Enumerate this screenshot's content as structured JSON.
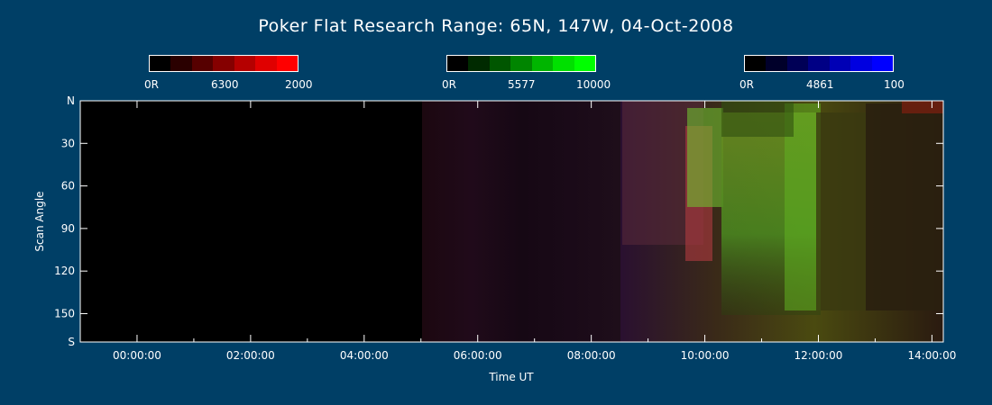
{
  "title": "Poker Flat Research Range: 65N, 147W, 04-Oct-2008",
  "colorbars": [
    {
      "name": "6300",
      "min_label": "0R",
      "mid_label": "6300",
      "max_label": "2000",
      "colors": [
        "#000000",
        "#2A0000",
        "#560000",
        "#850000",
        "#B50000",
        "#E00000",
        "#FF0000"
      ]
    },
    {
      "name": "5577",
      "min_label": "0R",
      "mid_label": "5577",
      "max_label": "10000",
      "colors": [
        "#000000",
        "#002A00",
        "#005600",
        "#008500",
        "#00B500",
        "#00E000",
        "#00FF00"
      ]
    },
    {
      "name": "4861",
      "min_label": "0R",
      "mid_label": "4861",
      "max_label": "100",
      "colors": [
        "#000000",
        "#00002A",
        "#000056",
        "#000085",
        "#0000B5",
        "#0000E0",
        "#0000FF"
      ]
    }
  ],
  "chart_data": {
    "type": "heatmap",
    "title": "Poker Flat Research Range: 65N, 147W, 04-Oct-2008",
    "xlabel": "Time UT",
    "ylabel": "Scan Angle",
    "x_ticks": [
      "00:00:00",
      "02:00:00",
      "04:00:00",
      "06:00:00",
      "08:00:00",
      "10:00:00",
      "12:00:00",
      "14:00:00"
    ],
    "x_range_hours": [
      -1.0,
      14.2
    ],
    "y_ticks": [
      "N",
      "30",
      "60",
      "90",
      "120",
      "150",
      "S"
    ],
    "y_tick_values": [
      0,
      30,
      60,
      90,
      120,
      150,
      170
    ],
    "y_range": [
      0,
      170
    ],
    "data_start_hour": 4.97,
    "channels": [
      "6300 (red)",
      "5577 (green)",
      "4861 (blue)"
    ],
    "colors": {
      "background": "#003F66",
      "axis": "#FFFFFF"
    }
  }
}
